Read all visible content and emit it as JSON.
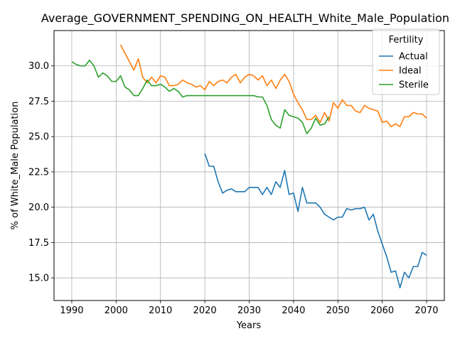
{
  "chart_data": {
    "type": "line",
    "title": "Average_GOVERNMENT_SPENDING_ON_HEALTH_White_Male_Population",
    "xlabel": "Years",
    "ylabel": "% of White_Male Population",
    "xlim": [
      1986,
      2074
    ],
    "ylim": [
      13.4,
      32.5
    ],
    "xticks": [
      1990,
      2000,
      2010,
      2020,
      2030,
      2040,
      2050,
      2060,
      2070
    ],
    "xtick_labels": [
      "1990",
      "2000",
      "2010",
      "2020",
      "2030",
      "2040",
      "2050",
      "2060",
      "2070"
    ],
    "yticks": [
      15.0,
      17.5,
      20.0,
      22.5,
      25.0,
      27.5,
      30.0
    ],
    "ytick_labels": [
      "15.0",
      "17.5",
      "20.0",
      "22.5",
      "25.0",
      "27.5",
      "30.0"
    ],
    "grid": true,
    "legend": {
      "title": "Fertility",
      "placement": "top-right"
    },
    "series": [
      {
        "name": "Actual",
        "color": "#1f77b4",
        "x": [
          2020,
          2021,
          2022,
          2023,
          2024,
          2025,
          2026,
          2027,
          2028,
          2029,
          2030,
          2031,
          2032,
          2033,
          2034,
          2035,
          2036,
          2037,
          2038,
          2039,
          2040,
          2041,
          2042,
          2043,
          2044,
          2045,
          2046,
          2047,
          2048,
          2049,
          2050,
          2051,
          2052,
          2053,
          2054,
          2055,
          2056,
          2057,
          2058,
          2059,
          2060,
          2061,
          2062,
          2063,
          2064,
          2065,
          2066,
          2067,
          2068,
          2069,
          2070
        ],
        "y": [
          23.8,
          22.9,
          22.9,
          21.8,
          21.0,
          21.2,
          21.3,
          21.1,
          21.1,
          21.1,
          21.4,
          21.4,
          21.4,
          20.9,
          21.4,
          20.9,
          21.8,
          21.4,
          22.6,
          20.9,
          21.0,
          19.7,
          21.4,
          20.3,
          20.3,
          20.3,
          20.0,
          19.5,
          19.3,
          19.1,
          19.3,
          19.3,
          19.9,
          19.8,
          19.9,
          19.9,
          20.0,
          19.1,
          19.5,
          18.3,
          17.4,
          16.5,
          15.4,
          15.5,
          14.3,
          15.4,
          15.0,
          15.8,
          15.8,
          16.8,
          16.6
        ]
      },
      {
        "name": "Ideal",
        "color": "#ff7f0e",
        "x": [
          2001,
          2002,
          2003,
          2004,
          2005,
          2006,
          2007,
          2008,
          2009,
          2010,
          2011,
          2012,
          2013,
          2014,
          2015,
          2016,
          2017,
          2018,
          2019,
          2020,
          2021,
          2022,
          2023,
          2024,
          2025,
          2026,
          2027,
          2028,
          2029,
          2030,
          2031,
          2032,
          2033,
          2034,
          2035,
          2036,
          2037,
          2038,
          2039,
          2040,
          2041,
          2042,
          2043,
          2044,
          2045,
          2046,
          2047,
          2048,
          2049,
          2050,
          2051,
          2052,
          2053,
          2054,
          2055,
          2056,
          2057,
          2058,
          2059,
          2060,
          2061,
          2062,
          2063,
          2064,
          2065,
          2066,
          2067,
          2068,
          2069,
          2070
        ],
        "y": [
          31.5,
          30.9,
          30.3,
          29.7,
          30.5,
          29.2,
          28.8,
          29.2,
          28.8,
          29.3,
          29.2,
          28.6,
          28.6,
          28.7,
          29.0,
          28.8,
          28.7,
          28.5,
          28.6,
          28.3,
          28.9,
          28.6,
          28.9,
          29.0,
          28.8,
          29.2,
          29.4,
          28.8,
          29.2,
          29.4,
          29.3,
          29.0,
          29.3,
          28.6,
          29.0,
          28.4,
          29.0,
          29.4,
          28.9,
          28.0,
          27.4,
          26.9,
          26.2,
          26.2,
          26.5,
          26.0,
          26.7,
          26.1,
          27.4,
          27.0,
          27.6,
          27.2,
          27.2,
          26.8,
          26.7,
          27.2,
          27.0,
          26.9,
          26.8,
          26.0,
          26.1,
          25.7,
          25.9,
          25.7,
          26.4,
          26.4,
          26.7,
          26.6,
          26.6,
          26.3
        ]
      },
      {
        "name": "Sterile",
        "color": "#2ca02c",
        "x": [
          1990,
          1991,
          1992,
          1993,
          1994,
          1995,
          1996,
          1997,
          1998,
          1999,
          2000,
          2001,
          2002,
          2003,
          2004,
          2005,
          2006,
          2007,
          2008,
          2009,
          2010,
          2011,
          2012,
          2013,
          2014,
          2015,
          2016,
          2017,
          2018,
          2019,
          2020,
          2021,
          2022,
          2023,
          2024,
          2025,
          2026,
          2027,
          2028,
          2029,
          2030,
          2031,
          2032,
          2033,
          2034,
          2035,
          2036,
          2037,
          2038,
          2039,
          2040,
          2041,
          2042,
          2043,
          2044,
          2045,
          2046,
          2047,
          2048
        ],
        "y": [
          30.3,
          30.1,
          30.0,
          30.0,
          30.4,
          30.0,
          29.2,
          29.5,
          29.3,
          28.9,
          28.9,
          29.3,
          28.5,
          28.3,
          27.9,
          27.9,
          28.4,
          29.0,
          28.6,
          28.6,
          28.7,
          28.5,
          28.2,
          28.4,
          28.2,
          27.8,
          27.9,
          27.9,
          27.9,
          27.9,
          27.9,
          27.9,
          27.9,
          27.9,
          27.9,
          27.9,
          27.9,
          27.9,
          27.9,
          27.9,
          27.9,
          27.9,
          27.8,
          27.8,
          27.2,
          26.2,
          25.8,
          25.6,
          26.9,
          26.5,
          26.4,
          26.3,
          26.0,
          25.2,
          25.6,
          26.3,
          25.8,
          25.9,
          26.4
        ]
      }
    ]
  }
}
